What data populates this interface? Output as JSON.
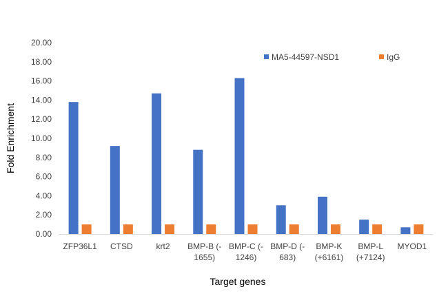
{
  "chart_data": {
    "type": "bar",
    "title": "",
    "xlabel": "Target genes",
    "ylabel": "Fold Enrichment",
    "ylim": [
      0,
      20
    ],
    "ytick_step": 2,
    "ytick_labels": [
      "0.00",
      "2.00",
      "4.00",
      "6.00",
      "8.00",
      "10.00",
      "12.00",
      "14.00",
      "16.00",
      "18.00",
      "20.00"
    ],
    "grid": false,
    "legend_position": "top-right",
    "categories": [
      [
        "ZFP36L1"
      ],
      [
        "CTSD"
      ],
      [
        "krt2"
      ],
      [
        "BMP-B (-",
        "1655)"
      ],
      [
        "BMP-C (-",
        "1246)"
      ],
      [
        "BMP-D (-",
        "683)"
      ],
      [
        "BMP-K",
        "(+6161)"
      ],
      [
        "BMP-L",
        "(+7124)"
      ],
      [
        "MYOD1"
      ]
    ],
    "series": [
      {
        "name": "MA5-44597-NSD1",
        "color": "#4472C4",
        "values": [
          13.8,
          9.2,
          14.7,
          8.8,
          16.3,
          3.0,
          3.9,
          1.5,
          0.7
        ]
      },
      {
        "name": "IgG",
        "color": "#ED7D31",
        "values": [
          1.0,
          1.0,
          1.0,
          1.0,
          1.0,
          1.0,
          1.0,
          1.0,
          1.0
        ]
      }
    ]
  }
}
